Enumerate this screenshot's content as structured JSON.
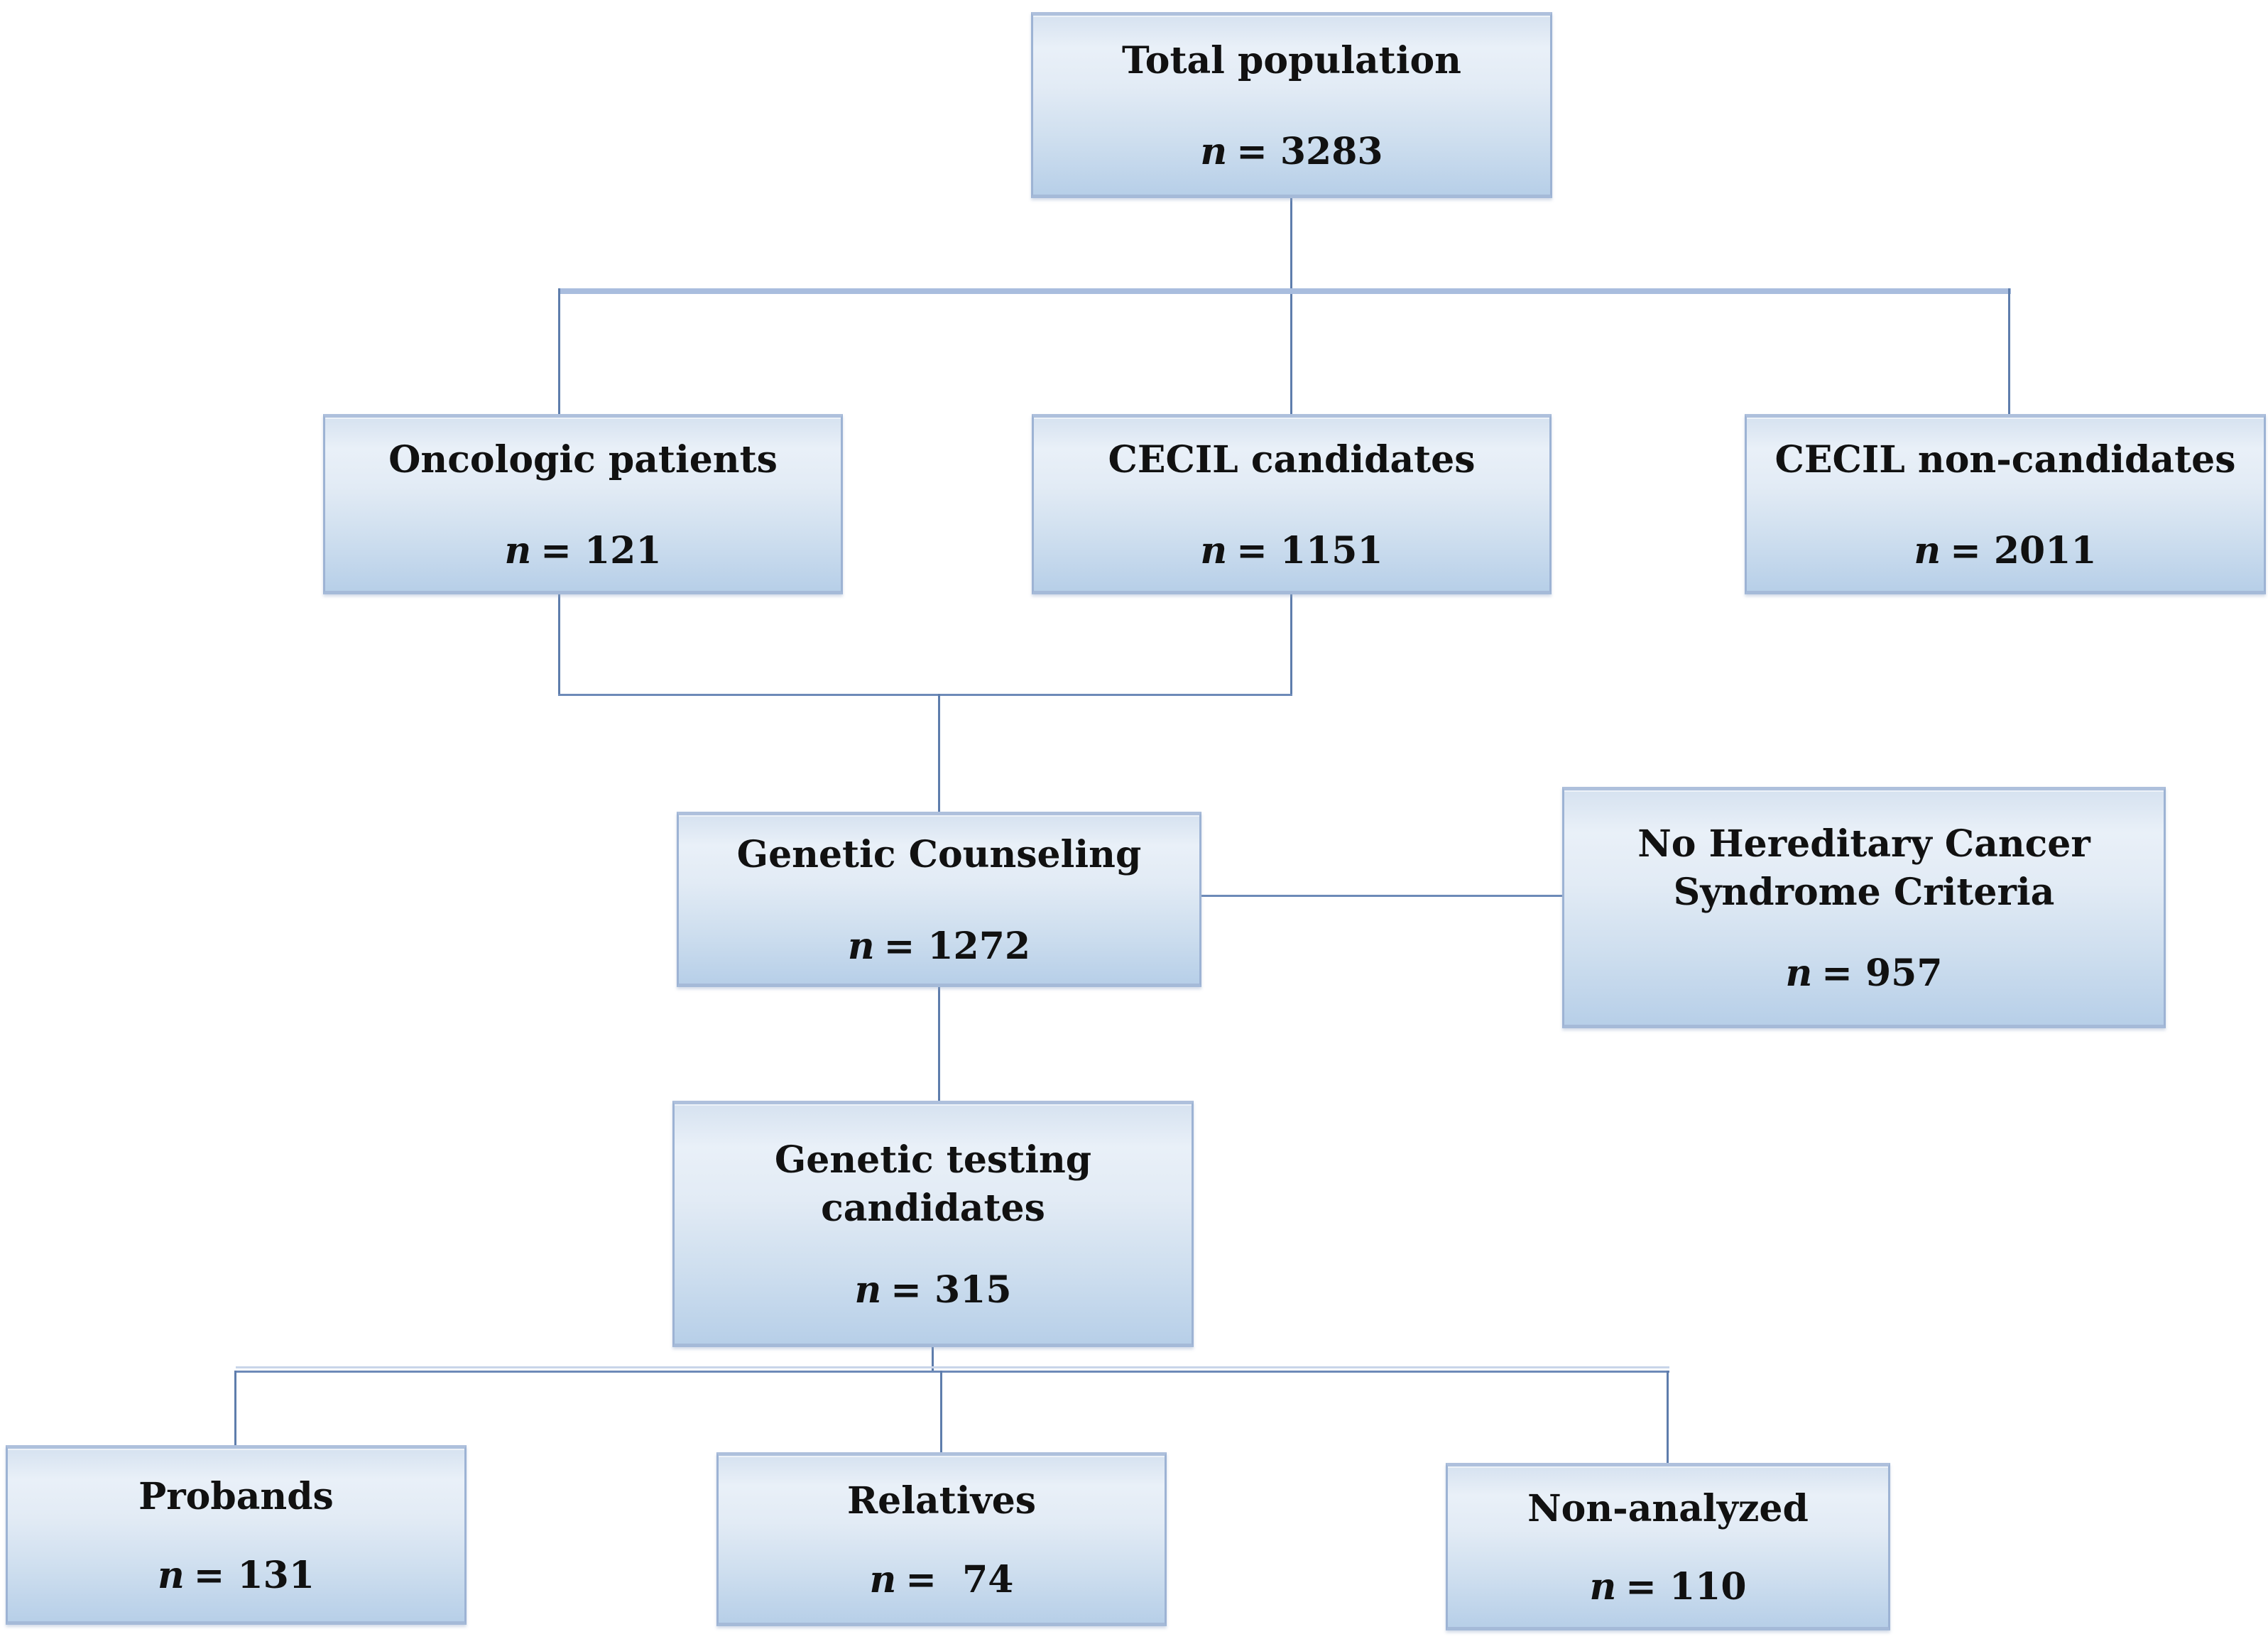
{
  "figure": {
    "type": "flow-diagram",
    "background": "#ffffff",
    "colors": {
      "box_fill_top": "#e9f0f8",
      "box_fill_bottom": "#b7cfe8",
      "box_border": "#9db3d4",
      "connector_line": "#5e7dac",
      "connector_band": "#a9bdde",
      "text": "#111111"
    }
  },
  "nodes": {
    "total_population": {
      "title": "Total population",
      "n_prefix": "n",
      "n_value": "= 3283"
    },
    "oncologic_patients": {
      "title": "Oncologic patients",
      "n_prefix": "n",
      "n_value": "= 121"
    },
    "cecil_candidates": {
      "title": "CECIL candidates",
      "n_prefix": "n",
      "n_value": "= 1151"
    },
    "cecil_non_candidates": {
      "title": "CECIL non-candidates",
      "n_prefix": "n",
      "n_value": "= 2011"
    },
    "genetic_counseling": {
      "title": "Genetic Counseling",
      "n_prefix": "n",
      "n_value": "= 1272"
    },
    "no_hereditary_criteria": {
      "title": "No Hereditary Cancer\nSyndrome Criteria",
      "n_prefix": "n",
      "n_value": "= 957"
    },
    "genetic_testing_candidates": {
      "title": "Genetic testing\ncandidates",
      "n_prefix": "n",
      "n_value": "= 315"
    },
    "probands": {
      "title": "Probands",
      "n_prefix": "n",
      "n_value": "= 131"
    },
    "relatives": {
      "title": "Relatives",
      "n_prefix": "n",
      "n_value": "=  74"
    },
    "non_analyzed": {
      "title": "Non-analyzed",
      "n_prefix": "n",
      "n_value": "= 110"
    }
  },
  "edges": [
    {
      "from": "total_population",
      "to": "oncologic_patients"
    },
    {
      "from": "total_population",
      "to": "cecil_candidates"
    },
    {
      "from": "total_population",
      "to": "cecil_non_candidates"
    },
    {
      "from": "oncologic_patients",
      "to": "genetic_counseling"
    },
    {
      "from": "cecil_candidates",
      "to": "genetic_counseling"
    },
    {
      "from": "genetic_counseling",
      "to": "no_hereditary_criteria"
    },
    {
      "from": "genetic_counseling",
      "to": "genetic_testing_candidates"
    },
    {
      "from": "genetic_testing_candidates",
      "to": "probands"
    },
    {
      "from": "genetic_testing_candidates",
      "to": "relatives"
    },
    {
      "from": "genetic_testing_candidates",
      "to": "non_analyzed"
    }
  ]
}
